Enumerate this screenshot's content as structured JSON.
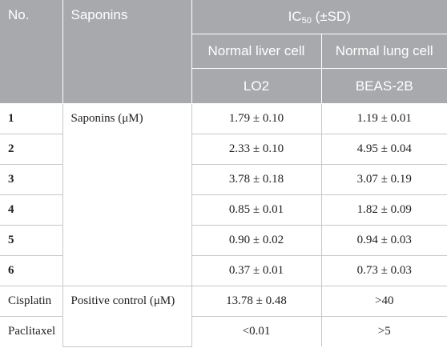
{
  "header": {
    "col_no": "No.",
    "col_saponins": "Saponins",
    "col_ic50_prefix": "IC",
    "col_ic50_sub": "50",
    "col_ic50_suffix": " (±SD)",
    "sub_liver": "Normal liver cell",
    "sub_lung": "Normal lung cell",
    "cell_lo2": "LO2",
    "cell_beas": "BEAS-2B"
  },
  "groups": {
    "saponins": "Saponins (μM)",
    "positive": "Positive control (μM)"
  },
  "rows": [
    {
      "no": "1",
      "lo2": "1.79 ± 0.10",
      "beas": "1.19 ± 0.01"
    },
    {
      "no": "2",
      "lo2": "2.33 ± 0.10",
      "beas": "4.95 ± 0.04"
    },
    {
      "no": "3",
      "lo2": "3.78 ± 0.18",
      "beas": "3.07 ± 0.19"
    },
    {
      "no": "4",
      "lo2": "0.85 ± 0.01",
      "beas": "1.82 ± 0.09"
    },
    {
      "no": "5",
      "lo2": "0.90 ± 0.02",
      "beas": "0.94 ± 0.03"
    },
    {
      "no": "6",
      "lo2": "0.37 ± 0.01",
      "beas": "0.73 ± 0.03"
    },
    {
      "no": "Cisplatin",
      "lo2": "13.78 ± 0.48",
      "beas": ">40"
    },
    {
      "no": "Paclitaxel",
      "lo2": "<0.01",
      "beas": ">5"
    }
  ]
}
